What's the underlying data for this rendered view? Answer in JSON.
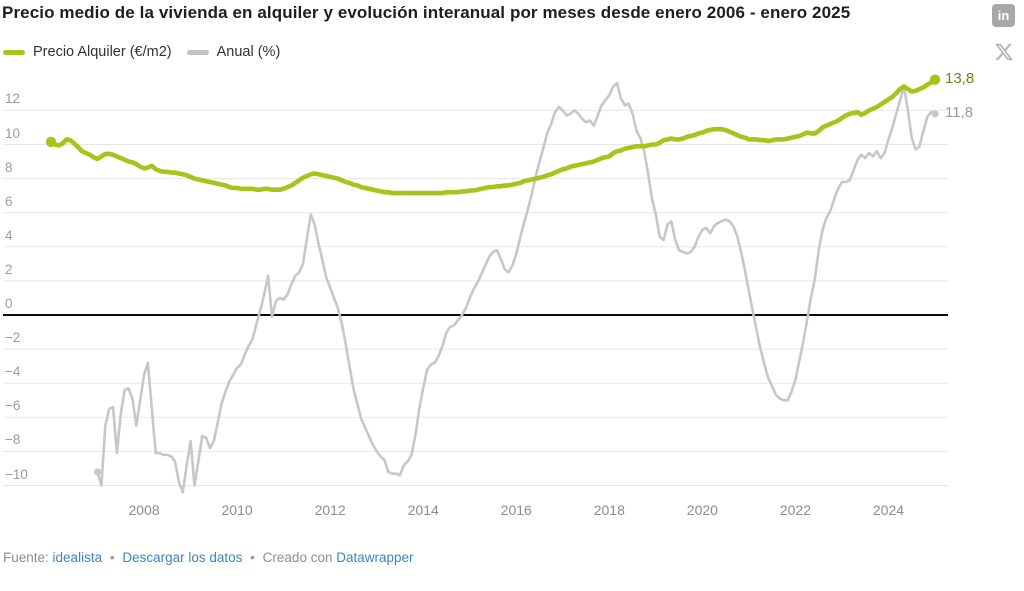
{
  "social": {
    "linkedin_label": "in"
  },
  "footer": {
    "source_label": "Fuente:",
    "source_link": "idealista",
    "separator": "•",
    "download_link": "Descargar los datos",
    "created_with": "Creado con",
    "datawrapper_link": "Datawrapper"
  },
  "chart_data": {
    "type": "line",
    "title": "Precio medio de la vivienda en alquiler y evolución interanual por meses desde enero 2006 - enero 2025",
    "x_start": "enero 2006",
    "x_end": "enero 2025",
    "grid": "horizontal-only",
    "legend_position": "top-left",
    "baseline": 0,
    "ylim": [
      -10.6,
      14.1
    ],
    "y_axis": {
      "ticks": [
        {
          "label": "12",
          "value": 12
        },
        {
          "label": "10",
          "value": 10
        },
        {
          "label": "8",
          "value": 8
        },
        {
          "label": "6",
          "value": 6
        },
        {
          "label": "4",
          "value": 4
        },
        {
          "label": "2",
          "value": 2
        },
        {
          "label": "0",
          "value": 0
        },
        {
          "label": "−2",
          "value": -2
        },
        {
          "label": "−4",
          "value": -4
        },
        {
          "label": "−6",
          "value": -6
        },
        {
          "label": "−8",
          "value": -8
        },
        {
          "label": "−10",
          "value": -10
        }
      ]
    },
    "x_axis": {
      "ticks": [
        {
          "label": "2008",
          "month": 24
        },
        {
          "label": "2010",
          "month": 48
        },
        {
          "label": "2012",
          "month": 72
        },
        {
          "label": "2014",
          "month": 96
        },
        {
          "label": "2016",
          "month": 120
        },
        {
          "label": "2018",
          "month": 144
        },
        {
          "label": "2020",
          "month": 168
        },
        {
          "label": "2022",
          "month": 192
        },
        {
          "label": "2024",
          "month": 216
        }
      ]
    },
    "series": [
      {
        "name": "Precio Alquiler (€/m2)",
        "unit": "€/m2",
        "end_label": "13,8",
        "end_value": 13.8,
        "color": "#a8c41c",
        "label_color": "#75821b",
        "line_width": 4.6,
        "dot_radius": 5.2,
        "start_month": 0,
        "values": [
          10.15,
          10.0,
          9.95,
          10.05,
          10.3,
          10.25,
          10.05,
          9.85,
          9.6,
          9.5,
          9.4,
          9.25,
          9.15,
          9.3,
          9.45,
          9.45,
          9.4,
          9.3,
          9.2,
          9.1,
          9.0,
          8.95,
          8.85,
          8.7,
          8.6,
          8.65,
          8.75,
          8.55,
          8.45,
          8.4,
          8.4,
          8.35,
          8.35,
          8.3,
          8.25,
          8.2,
          8.1,
          8.0,
          7.95,
          7.9,
          7.85,
          7.8,
          7.75,
          7.7,
          7.65,
          7.6,
          7.5,
          7.45,
          7.45,
          7.4,
          7.4,
          7.4,
          7.4,
          7.35,
          7.35,
          7.4,
          7.4,
          7.35,
          7.35,
          7.35,
          7.4,
          7.5,
          7.6,
          7.75,
          7.9,
          8.05,
          8.15,
          8.25,
          8.3,
          8.25,
          8.2,
          8.15,
          8.1,
          8.05,
          8.0,
          7.9,
          7.8,
          7.75,
          7.65,
          7.6,
          7.5,
          7.45,
          7.4,
          7.35,
          7.3,
          7.25,
          7.2,
          7.2,
          7.15,
          7.15,
          7.15,
          7.15,
          7.15,
          7.15,
          7.15,
          7.15,
          7.15,
          7.15,
          7.15,
          7.15,
          7.15,
          7.15,
          7.2,
          7.2,
          7.2,
          7.2,
          7.25,
          7.25,
          7.3,
          7.3,
          7.35,
          7.4,
          7.45,
          7.5,
          7.5,
          7.55,
          7.55,
          7.6,
          7.6,
          7.65,
          7.7,
          7.75,
          7.85,
          7.9,
          7.95,
          8.0,
          8.05,
          8.1,
          8.2,
          8.25,
          8.35,
          8.45,
          8.55,
          8.6,
          8.7,
          8.75,
          8.8,
          8.85,
          8.9,
          8.95,
          9.0,
          9.1,
          9.2,
          9.25,
          9.3,
          9.5,
          9.6,
          9.65,
          9.75,
          9.8,
          9.85,
          9.9,
          9.9,
          9.9,
          9.95,
          10.0,
          10.0,
          10.1,
          10.25,
          10.3,
          10.35,
          10.3,
          10.3,
          10.35,
          10.45,
          10.5,
          10.55,
          10.65,
          10.7,
          10.8,
          10.85,
          10.9,
          10.9,
          10.9,
          10.85,
          10.75,
          10.65,
          10.55,
          10.45,
          10.4,
          10.3,
          10.3,
          10.3,
          10.25,
          10.25,
          10.2,
          10.25,
          10.3,
          10.3,
          10.3,
          10.35,
          10.4,
          10.45,
          10.5,
          10.6,
          10.7,
          10.65,
          10.65,
          10.8,
          11.0,
          11.1,
          11.2,
          11.3,
          11.4,
          11.55,
          11.7,
          11.8,
          11.85,
          11.9,
          11.75,
          11.85,
          12.0,
          12.1,
          12.2,
          12.35,
          12.5,
          12.65,
          12.8,
          13.0,
          13.25,
          13.4,
          13.25,
          13.1,
          13.15,
          13.25,
          13.35,
          13.5,
          13.65,
          13.8
        ]
      },
      {
        "name": "Anual (%)",
        "unit": "%",
        "end_label": "11,8",
        "end_value": 11.8,
        "color": "#c7c7c7",
        "label_color": "#9b9b9b",
        "line_width": 2.6,
        "dot_radius": 3.6,
        "start_month": 12,
        "values": [
          -9.2,
          -10.0,
          -6.5,
          -5.5,
          -5.4,
          -8.1,
          -5.8,
          -4.4,
          -4.3,
          -4.9,
          -6.5,
          -5.0,
          -3.5,
          -2.8,
          -5.5,
          -8.1,
          -8.1,
          -8.2,
          -8.2,
          -8.3,
          -8.6,
          -9.8,
          -10.4,
          -8.8,
          -7.4,
          -10.0,
          -8.6,
          -7.1,
          -7.2,
          -7.8,
          -7.4,
          -6.3,
          -5.2,
          -4.5,
          -3.9,
          -3.5,
          -3.1,
          -2.9,
          -2.3,
          -1.8,
          -1.4,
          -0.5,
          0.3,
          1.2,
          2.3,
          -0.1,
          0.8,
          1.0,
          0.9,
          1.2,
          1.8,
          2.3,
          2.5,
          3.0,
          4.5,
          5.9,
          5.3,
          4.2,
          3.2,
          2.2,
          1.6,
          1.0,
          0.4,
          -0.5,
          -1.7,
          -3.0,
          -4.3,
          -5.2,
          -6.1,
          -6.6,
          -7.1,
          -7.6,
          -8.0,
          -8.3,
          -8.5,
          -9.2,
          -9.3,
          -9.3,
          -9.4,
          -8.8,
          -8.6,
          -8.2,
          -7.0,
          -5.5,
          -4.3,
          -3.2,
          -2.9,
          -2.8,
          -2.4,
          -1.8,
          -1.0,
          -0.7,
          -0.6,
          -0.3,
          0.0,
          0.4,
          1.0,
          1.5,
          1.9,
          2.4,
          2.9,
          3.4,
          3.7,
          3.8,
          3.3,
          2.7,
          2.5,
          2.9,
          3.6,
          4.5,
          5.4,
          6.2,
          7.1,
          8.1,
          9.0,
          9.8,
          10.7,
          11.2,
          11.9,
          12.2,
          12.0,
          11.7,
          11.8,
          12.0,
          11.8,
          11.5,
          11.3,
          11.4,
          11.1,
          11.7,
          12.3,
          12.6,
          12.9,
          13.4,
          13.6,
          12.7,
          12.3,
          12.4,
          11.8,
          10.8,
          10.4,
          9.6,
          8.3,
          6.8,
          5.9,
          4.6,
          4.4,
          5.3,
          5.5,
          4.4,
          3.8,
          3.7,
          3.6,
          3.7,
          4.0,
          4.6,
          5.0,
          5.1,
          4.8,
          5.2,
          5.4,
          5.5,
          5.6,
          5.5,
          5.2,
          4.6,
          3.7,
          2.6,
          1.4,
          0.2,
          -0.9,
          -2.0,
          -2.9,
          -3.7,
          -4.2,
          -4.7,
          -4.9,
          -5.0,
          -5.0,
          -4.5,
          -3.8,
          -2.7,
          -1.6,
          -0.3,
          1.0,
          2.1,
          3.8,
          5.0,
          5.7,
          6.1,
          6.8,
          7.4,
          7.8,
          7.8,
          7.9,
          8.5,
          9.1,
          9.4,
          9.2,
          9.5,
          9.3,
          9.6,
          9.2,
          9.5,
          10.3,
          11.0,
          11.8,
          12.6,
          13.4,
          12.0,
          10.4,
          9.7,
          9.9,
          10.8,
          11.6,
          11.9,
          11.8
        ]
      }
    ]
  }
}
